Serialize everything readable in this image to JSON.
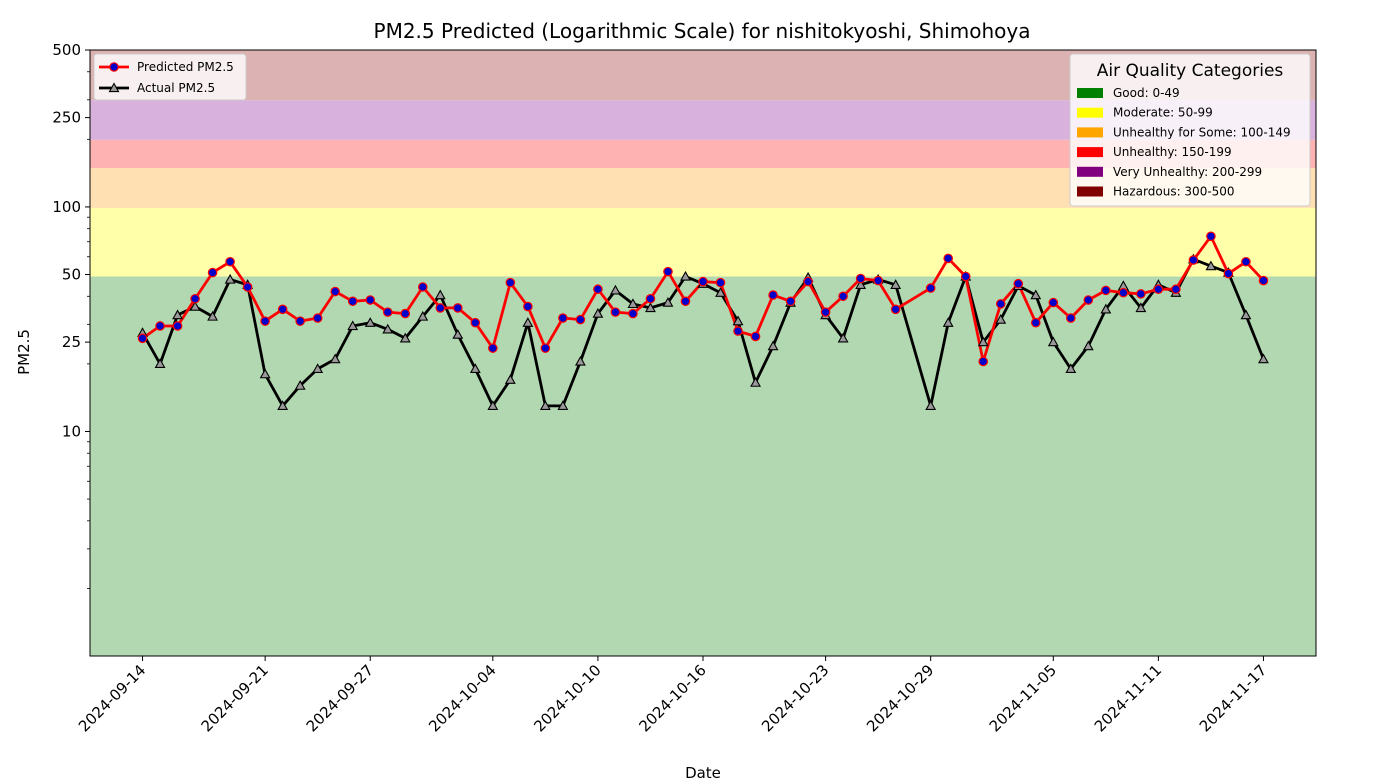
{
  "chart_data": {
    "type": "line",
    "title": "PM2.5 Predicted (Logarithmic Scale) for nishitokyoshi, Shimohoya",
    "xlabel": "Date",
    "ylabel": "PM2.5",
    "yscale": "log",
    "ylim": [
      1,
      500
    ],
    "xlim": [
      "2024-09-11",
      "2024-11-20"
    ],
    "y_ticks": [
      10,
      25,
      50,
      100,
      250,
      500
    ],
    "x_ticks": [
      "2024-09-14",
      "2024-09-21",
      "2024-09-27",
      "2024-10-04",
      "2024-10-10",
      "2024-10-16",
      "2024-10-23",
      "2024-10-29",
      "2024-11-05",
      "2024-11-11",
      "2024-11-17"
    ],
    "grid": false,
    "bands": [
      {
        "from": 1,
        "to": 49,
        "color": "#b2d8b2"
      },
      {
        "from": 49,
        "to": 99,
        "color": "#ffffaa"
      },
      {
        "from": 99,
        "to": 149,
        "color": "#ffe0b2"
      },
      {
        "from": 149,
        "to": 199,
        "color": "#ffb2b2"
      },
      {
        "from": 199,
        "to": 299,
        "color": "#d8b2dc"
      },
      {
        "from": 299,
        "to": 500,
        "color": "#dcb2b2"
      }
    ],
    "series": [
      {
        "name": "Predicted PM2.5",
        "line_color": "#ff0000",
        "marker_color": "#0000cc",
        "marker": "circle",
        "points": [
          [
            "2024-09-14",
            26
          ],
          [
            "2024-09-15",
            29.5
          ],
          [
            "2024-09-16",
            29.5
          ],
          [
            "2024-09-17",
            39
          ],
          [
            "2024-09-18",
            51
          ],
          [
            "2024-09-19",
            57
          ],
          [
            "2024-09-20",
            44
          ],
          [
            "2024-09-21",
            31
          ],
          [
            "2024-09-22",
            35
          ],
          [
            "2024-09-23",
            31
          ],
          [
            "2024-09-24",
            32
          ],
          [
            "2024-09-25",
            42
          ],
          [
            "2024-09-26",
            38
          ],
          [
            "2024-09-27",
            38.5
          ],
          [
            "2024-09-28",
            34
          ],
          [
            "2024-09-29",
            33.5
          ],
          [
            "2024-09-30",
            44
          ],
          [
            "2024-10-01",
            35.5
          ],
          [
            "2024-10-02",
            35.5
          ],
          [
            "2024-10-03",
            30.5
          ],
          [
            "2024-10-04",
            23.5
          ],
          [
            "2024-10-05",
            46
          ],
          [
            "2024-10-06",
            36
          ],
          [
            "2024-10-07",
            23.5
          ],
          [
            "2024-10-08",
            32
          ],
          [
            "2024-10-09",
            31.5
          ],
          [
            "2024-10-10",
            43
          ],
          [
            "2024-10-11",
            34
          ],
          [
            "2024-10-12",
            33.5
          ],
          [
            "2024-10-13",
            39
          ],
          [
            "2024-10-14",
            51.5
          ],
          [
            "2024-10-15",
            38
          ],
          [
            "2024-10-16",
            46.5
          ],
          [
            "2024-10-17",
            46
          ],
          [
            "2024-10-18",
            28
          ],
          [
            "2024-10-19",
            26.5
          ],
          [
            "2024-10-20",
            40.5
          ],
          [
            "2024-10-21",
            38
          ],
          [
            "2024-10-22",
            46.5
          ],
          [
            "2024-10-23",
            34
          ],
          [
            "2024-10-24",
            40
          ],
          [
            "2024-10-25",
            48
          ],
          [
            "2024-10-26",
            47
          ],
          [
            "2024-10-27",
            35
          ],
          [
            "2024-10-29",
            43.5
          ],
          [
            "2024-10-30",
            59
          ],
          [
            "2024-10-31",
            49
          ],
          [
            "2024-11-01",
            20.5
          ],
          [
            "2024-11-02",
            37
          ],
          [
            "2024-11-03",
            45.5
          ],
          [
            "2024-11-04",
            30.5
          ],
          [
            "2024-11-05",
            37.5
          ],
          [
            "2024-11-06",
            32
          ],
          [
            "2024-11-07",
            38.5
          ],
          [
            "2024-11-08",
            42.5
          ],
          [
            "2024-11-09",
            41.5
          ],
          [
            "2024-11-10",
            41
          ],
          [
            "2024-11-11",
            43
          ],
          [
            "2024-11-12",
            43
          ],
          [
            "2024-11-13",
            58
          ],
          [
            "2024-11-14",
            74
          ],
          [
            "2024-11-15",
            50.5
          ],
          [
            "2024-11-16",
            57
          ],
          [
            "2024-11-17",
            47
          ]
        ]
      },
      {
        "name": "Actual PM2.5",
        "line_color": "#000000",
        "marker_color": "#999999",
        "marker": "triangle",
        "points": [
          [
            "2024-09-14",
            27.5
          ],
          [
            "2024-09-15",
            20
          ],
          [
            "2024-09-16",
            33
          ],
          [
            "2024-09-17",
            36
          ],
          [
            "2024-09-18",
            32.5
          ],
          [
            "2024-09-19",
            47.5
          ],
          [
            "2024-09-20",
            45
          ],
          [
            "2024-09-21",
            18
          ],
          [
            "2024-09-22",
            13
          ],
          [
            "2024-09-23",
            16
          ],
          [
            "2024-09-24",
            19
          ],
          [
            "2024-09-25",
            21
          ],
          [
            "2024-09-26",
            29.5
          ],
          [
            "2024-09-27",
            30.5
          ],
          [
            "2024-09-28",
            28.5
          ],
          [
            "2024-09-29",
            26
          ],
          [
            "2024-09-30",
            32.5
          ],
          [
            "2024-10-01",
            40.5
          ],
          [
            "2024-10-02",
            27
          ],
          [
            "2024-10-03",
            19
          ],
          [
            "2024-10-04",
            13
          ],
          [
            "2024-10-05",
            17
          ],
          [
            "2024-10-06",
            30.5
          ],
          [
            "2024-10-07",
            13
          ],
          [
            "2024-10-08",
            13
          ],
          [
            "2024-10-09",
            20.5
          ],
          [
            "2024-10-10",
            33.5
          ],
          [
            "2024-10-11",
            42.5
          ],
          [
            "2024-10-12",
            37
          ],
          [
            "2024-10-13",
            35.5
          ],
          [
            "2024-10-14",
            37.5
          ],
          [
            "2024-10-15",
            49
          ],
          [
            "2024-10-16",
            45.5
          ],
          [
            "2024-10-17",
            41.5
          ],
          [
            "2024-10-18",
            31
          ],
          [
            "2024-10-19",
            16.5
          ],
          [
            "2024-10-20",
            24
          ],
          [
            "2024-10-21",
            37.5
          ],
          [
            "2024-10-22",
            48.5
          ],
          [
            "2024-10-23",
            33
          ],
          [
            "2024-10-24",
            26
          ],
          [
            "2024-10-25",
            45
          ],
          [
            "2024-10-26",
            47.5
          ],
          [
            "2024-10-27",
            45
          ],
          [
            "2024-10-29",
            13
          ],
          [
            "2024-10-30",
            30.5
          ],
          [
            "2024-10-31",
            49
          ],
          [
            "2024-11-01",
            25
          ],
          [
            "2024-11-02",
            31.5
          ],
          [
            "2024-11-03",
            44.5
          ],
          [
            "2024-11-04",
            40.5
          ],
          [
            "2024-11-05",
            25
          ],
          [
            "2024-11-06",
            19
          ],
          [
            "2024-11-07",
            24
          ],
          [
            "2024-11-08",
            35
          ],
          [
            "2024-11-09",
            44.5
          ],
          [
            "2024-11-10",
            35.5
          ],
          [
            "2024-11-11",
            45
          ],
          [
            "2024-11-12",
            41.5
          ],
          [
            "2024-11-13",
            58.5
          ],
          [
            "2024-11-14",
            54.5
          ],
          [
            "2024-11-15",
            51
          ],
          [
            "2024-11-16",
            33
          ],
          [
            "2024-11-17",
            21
          ]
        ]
      }
    ],
    "series_legend_placement": "top-left",
    "categories_legend": {
      "title": "Air Quality Categories",
      "placement": "top-right",
      "items": [
        {
          "label": "Good: 0-49",
          "color": "#008000"
        },
        {
          "label": "Moderate: 50-99",
          "color": "#ffff00"
        },
        {
          "label": "Unhealthy for Some: 100-149",
          "color": "#ffa500"
        },
        {
          "label": "Unhealthy: 150-199",
          "color": "#ff0000"
        },
        {
          "label": "Very Unhealthy: 200-299",
          "color": "#800080"
        },
        {
          "label": "Hazardous: 300-500",
          "color": "#800000"
        }
      ]
    }
  }
}
